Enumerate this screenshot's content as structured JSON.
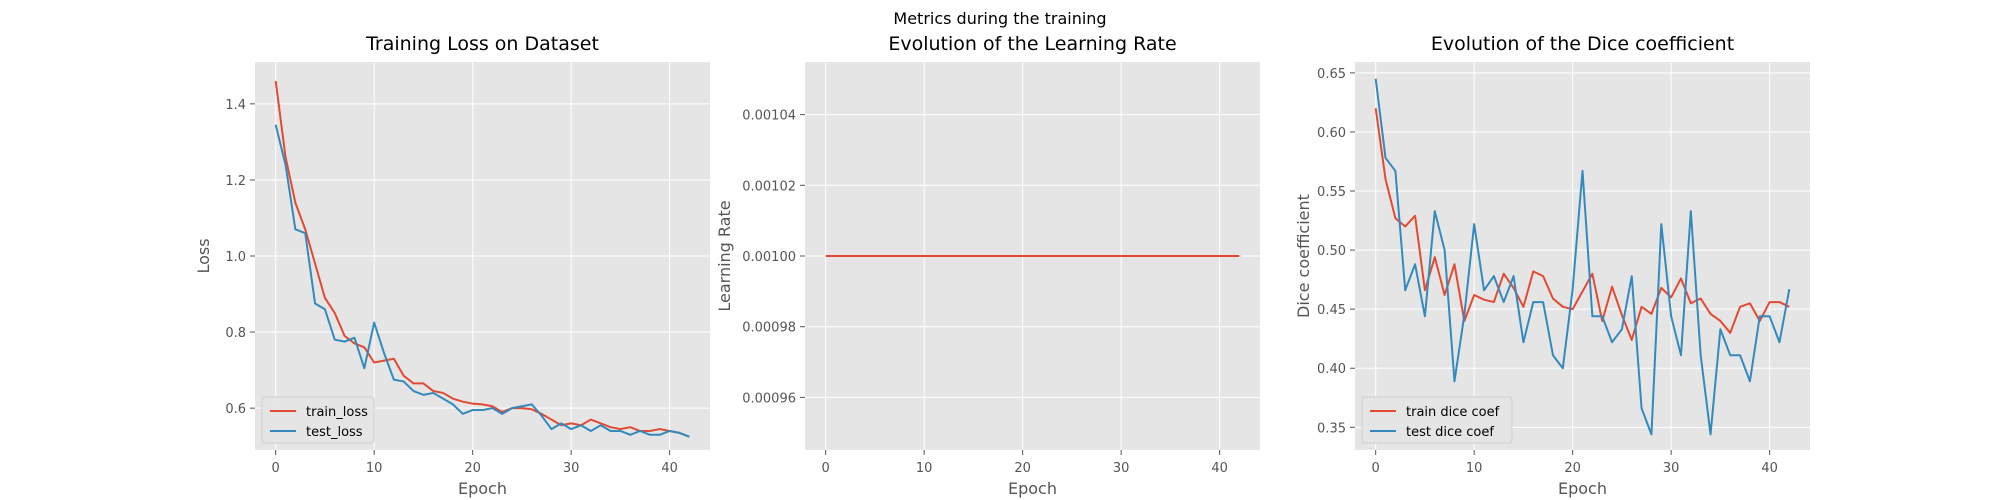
{
  "figure": {
    "suptitle": "Metrics during the training"
  },
  "colors": {
    "red": "#E24A33",
    "blue": "#348ABD",
    "axes_bg": "#E5E5E5",
    "grid": "#FFFFFF",
    "tick_text": "#555555",
    "label_text": "#555555"
  },
  "chart_data": [
    {
      "type": "line",
      "title": "Training Loss on Dataset",
      "xlabel": "Epoch",
      "ylabel": "Loss",
      "xlim": [
        -2.1,
        44.1
      ],
      "ylim": [
        0.49,
        1.51
      ],
      "xticks": [
        0,
        10,
        20,
        30,
        40
      ],
      "yticks": [
        0.6,
        0.8,
        1.0,
        1.2,
        1.4
      ],
      "ytick_labels": [
        "0.6",
        "0.8",
        "1.0",
        "1.2",
        "1.4"
      ],
      "grid": true,
      "legend_position": "lower-left",
      "x": [
        0,
        1,
        2,
        3,
        4,
        5,
        6,
        7,
        8,
        9,
        10,
        11,
        12,
        13,
        14,
        15,
        16,
        17,
        18,
        19,
        20,
        21,
        22,
        23,
        24,
        25,
        26,
        27,
        28,
        29,
        30,
        31,
        32,
        33,
        34,
        35,
        36,
        37,
        38,
        39,
        40,
        41,
        42
      ],
      "series": [
        {
          "name": "train_loss",
          "color": "#E24A33",
          "values": [
            1.46,
            1.26,
            1.14,
            1.07,
            0.98,
            0.89,
            0.85,
            0.79,
            0.77,
            0.76,
            0.72,
            0.725,
            0.73,
            0.685,
            0.665,
            0.665,
            0.645,
            0.64,
            0.625,
            0.617,
            0.612,
            0.61,
            0.605,
            0.59,
            0.6,
            0.6,
            0.597,
            0.585,
            0.57,
            0.555,
            0.56,
            0.555,
            0.57,
            0.56,
            0.55,
            0.545,
            0.55,
            0.54,
            0.54,
            0.545,
            0.54,
            0.535,
            0.525
          ]
        },
        {
          "name": "test_loss",
          "color": "#348ABD",
          "values": [
            1.345,
            1.24,
            1.07,
            1.06,
            0.875,
            0.86,
            0.78,
            0.775,
            0.785,
            0.705,
            0.825,
            0.745,
            0.675,
            0.67,
            0.645,
            0.635,
            0.64,
            0.625,
            0.61,
            0.585,
            0.595,
            0.595,
            0.6,
            0.585,
            0.6,
            0.605,
            0.61,
            0.58,
            0.545,
            0.56,
            0.545,
            0.555,
            0.54,
            0.555,
            0.54,
            0.54,
            0.53,
            0.54,
            0.53,
            0.53,
            0.54,
            0.535,
            0.525
          ]
        }
      ]
    },
    {
      "type": "line",
      "title": "Evolution of the Learning Rate",
      "xlabel": "Epoch",
      "ylabel": "Learning Rate",
      "xlim": [
        -2.1,
        44.1
      ],
      "ylim": [
        0.00094513,
        0.00105487
      ],
      "xticks": [
        0,
        10,
        20,
        30,
        40
      ],
      "yticks": [
        0.00096,
        0.00098,
        0.001,
        0.00102,
        0.00104
      ],
      "ytick_labels": [
        "0.00096",
        "0.00098",
        "0.00100",
        "0.00102",
        "0.00104"
      ],
      "grid": true,
      "x": [
        0,
        42
      ],
      "series": [
        {
          "color": "#E24A33",
          "values": [
            0.001,
            0.001
          ]
        }
      ]
    },
    {
      "type": "line",
      "title": "Evolution of the Dice coefficient",
      "xlabel": "Epoch",
      "ylabel": "Dice coefficient",
      "xlim": [
        -2.1,
        44.1
      ],
      "ylim": [
        0.3308,
        0.6592
      ],
      "xticks": [
        0,
        10,
        20,
        30,
        40
      ],
      "yticks": [
        0.35,
        0.4,
        0.45,
        0.5,
        0.55,
        0.6,
        0.65
      ],
      "ytick_labels": [
        "0.35",
        "0.40",
        "0.45",
        "0.50",
        "0.55",
        "0.60",
        "0.65"
      ],
      "grid": true,
      "legend_position": "lower-left",
      "x": [
        0,
        1,
        2,
        3,
        4,
        5,
        6,
        7,
        8,
        9,
        10,
        11,
        12,
        13,
        14,
        15,
        16,
        17,
        18,
        19,
        20,
        21,
        22,
        23,
        24,
        25,
        26,
        27,
        28,
        29,
        30,
        31,
        32,
        33,
        34,
        35,
        36,
        37,
        38,
        39,
        40,
        41,
        42
      ],
      "series": [
        {
          "name": "train dice coef",
          "color": "#E24A33",
          "values": [
            0.62,
            0.56,
            0.527,
            0.52,
            0.529,
            0.466,
            0.494,
            0.462,
            0.488,
            0.44,
            0.462,
            0.458,
            0.456,
            0.48,
            0.468,
            0.452,
            0.482,
            0.478,
            0.459,
            0.452,
            0.45,
            0.465,
            0.48,
            0.44,
            0.469,
            0.445,
            0.424,
            0.452,
            0.446,
            0.468,
            0.46,
            0.476,
            0.455,
            0.459,
            0.446,
            0.44,
            0.43,
            0.452,
            0.455,
            0.44,
            0.456,
            0.456,
            0.452
          ]
        },
        {
          "name": "test dice coef",
          "color": "#348ABD",
          "values": [
            0.645,
            0.578,
            0.567,
            0.466,
            0.488,
            0.444,
            0.533,
            0.5,
            0.389,
            0.445,
            0.522,
            0.466,
            0.478,
            0.456,
            0.478,
            0.422,
            0.456,
            0.456,
            0.411,
            0.4,
            0.467,
            0.567,
            0.444,
            0.444,
            0.422,
            0.433,
            0.478,
            0.366,
            0.344,
            0.522,
            0.444,
            0.411,
            0.533,
            0.411,
            0.344,
            0.433,
            0.411,
            0.411,
            0.389,
            0.444,
            0.444,
            0.422,
            0.467
          ]
        }
      ]
    }
  ]
}
